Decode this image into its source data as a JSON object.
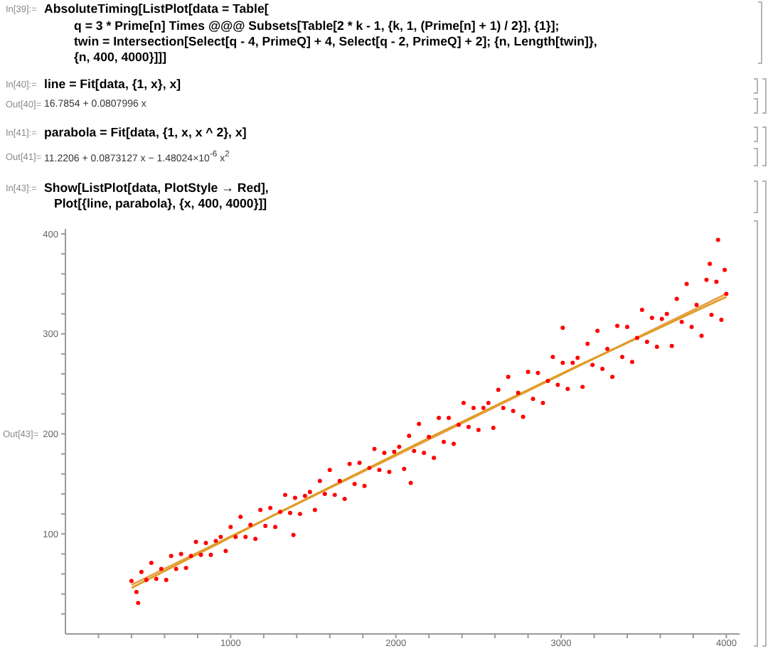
{
  "chart_data": {
    "type": "scatter",
    "marker": "circle",
    "annotations": [
      "In[39]:=",
      "AbsoluteTiming[ListPlot[data = Table[",
      "q = 3 * Prime[n] Times @@@ Subsets[Table[2 * k - 1, {k, 1, (Prime[n] + 1) / 2}], {1}];",
      "twin = Intersection[Select[q - 4, PrimeQ] + 4, Select[q - 2, PrimeQ] + 2]; {n, Length[twin]},",
      "{n, 400, 4000}]]]",
      "In[40]:=",
      "line = Fit[data, {1, x}, x]",
      "Out[40]=",
      "16.7854 + 0.0807996 x",
      "In[41]:=",
      "parabola = Fit[data, {1, x, x ^ 2}, x]",
      "Out[41]=",
      "11.2206 + 0.0873127 x − 1.48024×10$^{-6}$ x$^{2}$",
      "In[43]:=",
      "Show[ListPlot[data, PlotStyle → Red],",
      "Plot[{line, parabola}, {x, 400, 4000}]]",
      "Out[43]="
    ],
    "xlim": [
      0,
      4080
    ],
    "ylim": [
      0,
      405
    ],
    "xticks": [
      {
        "value": 200,
        "label": null
      },
      {
        "value": 400,
        "label": null
      },
      {
        "value": 600,
        "label": null
      },
      {
        "value": 800,
        "label": null
      },
      1000,
      {
        "value": 1200,
        "label": null
      },
      {
        "value": 1400,
        "label": null
      },
      {
        "value": 1600,
        "label": null
      },
      {
        "value": 1800,
        "label": null
      },
      2000,
      {
        "value": 2200,
        "label": null
      },
      {
        "value": 2400,
        "label": null
      },
      {
        "value": 2600,
        "label": null
      },
      {
        "value": 2800,
        "label": null
      },
      3000,
      {
        "value": 3200,
        "label": null
      },
      {
        "value": 3400,
        "label": null
      },
      {
        "value": 3600,
        "label": null
      },
      {
        "value": 3800,
        "label": null
      },
      4000
    ],
    "yticks": [
      {
        "value": 20,
        "label": null
      },
      {
        "value": 40,
        "label": null
      },
      {
        "value": 60,
        "label": null
      },
      {
        "value": 80,
        "label": null
      },
      100,
      {
        "value": 120,
        "label": null
      },
      {
        "value": 140,
        "label": null
      },
      {
        "value": 160,
        "label": null
      },
      {
        "value": 180,
        "label": null
      },
      200,
      {
        "value": 220,
        "label": null
      },
      {
        "value": 240,
        "label": null
      },
      {
        "value": 260,
        "label": null
      },
      {
        "value": 280,
        "label": null
      },
      300,
      {
        "value": 320,
        "label": null
      },
      {
        "value": 340,
        "label": null
      },
      {
        "value": 360,
        "label": null
      },
      {
        "value": 380,
        "label": null
      },
      400
    ],
    "series": [
      {
        "type": "scatter",
        "color": "#ff0000",
        "x": [
          400,
          430,
          460,
          490,
          520,
          550,
          580,
          610,
          640,
          670,
          700,
          730,
          760,
          790,
          820,
          850,
          880,
          910,
          940,
          970,
          1000,
          1030,
          1060,
          1090,
          1120,
          1150,
          1180,
          1210,
          1240,
          1270,
          1300,
          1330,
          1360,
          1390,
          1420,
          1450,
          1480,
          1510,
          1540,
          1570,
          1600,
          1630,
          1660,
          1690,
          1720,
          1750,
          1780,
          1810,
          1840,
          1870,
          1900,
          1930,
          1960,
          1990,
          2020,
          2050,
          2080,
          2110,
          2140,
          2170,
          2200,
          2230,
          2260,
          2290,
          2320,
          2350,
          2380,
          2410,
          2440,
          2470,
          2500,
          2530,
          2560,
          2590,
          2620,
          2650,
          2680,
          2710,
          2740,
          2770,
          2800,
          2830,
          2860,
          2890,
          2920,
          2950,
          2980,
          3010,
          3040,
          3070,
          3100,
          3130,
          3160,
          3190,
          3220,
          3250,
          3280,
          3310,
          3340,
          3370,
          3400,
          3430,
          3460,
          3490,
          3520,
          3550,
          3580,
          3610,
          3640,
          3670,
          3700,
          3730,
          3760,
          3790,
          3820,
          3850,
          3880,
          3910,
          3940,
          3970,
          4000,
          440,
          1380,
          2090,
          3010,
          3900,
          3950,
          3990
        ],
        "values": [
          53,
          42,
          62,
          54,
          71,
          55,
          65,
          54,
          78,
          65,
          80,
          66,
          78,
          92,
          79,
          91,
          79,
          93,
          97,
          83,
          107,
          97,
          117,
          97,
          109,
          95,
          124,
          108,
          126,
          107,
          122,
          139,
          121,
          136,
          120,
          138,
          142,
          124,
          153,
          140,
          164,
          139,
          153,
          135,
          170,
          150,
          171,
          148,
          166,
          185,
          164,
          181,
          162,
          182,
          187,
          165,
          198,
          183,
          210,
          181,
          197,
          176,
          216,
          192,
          216,
          190,
          209,
          231,
          207,
          226,
          204,
          226,
          231,
          206,
          244,
          226,
          257,
          223,
          241,
          217,
          262,
          235,
          261,
          231,
          253,
          277,
          249,
          271,
          245,
          271,
          276,
          247,
          290,
          269,
          303,
          265,
          285,
          257,
          308,
          277,
          307,
          272,
          296,
          324,
          292,
          316,
          287,
          315,
          320,
          288,
          335,
          312,
          350,
          307,
          329,
          298,
          354,
          319,
          352,
          314,
          340,
          31,
          99,
          151,
          306,
          370,
          394,
          364
        ]
      },
      {
        "type": "line",
        "marker": "none",
        "color": "#e6a24a",
        "x": [
          400,
          4000
        ],
        "values": [
          49,
          340
        ]
      },
      {
        "type": "line",
        "marker": "none",
        "color": "#e09c24",
        "x": [
          400,
          1300,
          2200,
          3100,
          4000
        ],
        "values": [
          46,
          122,
          196,
          268,
          337
        ]
      }
    ]
  }
}
